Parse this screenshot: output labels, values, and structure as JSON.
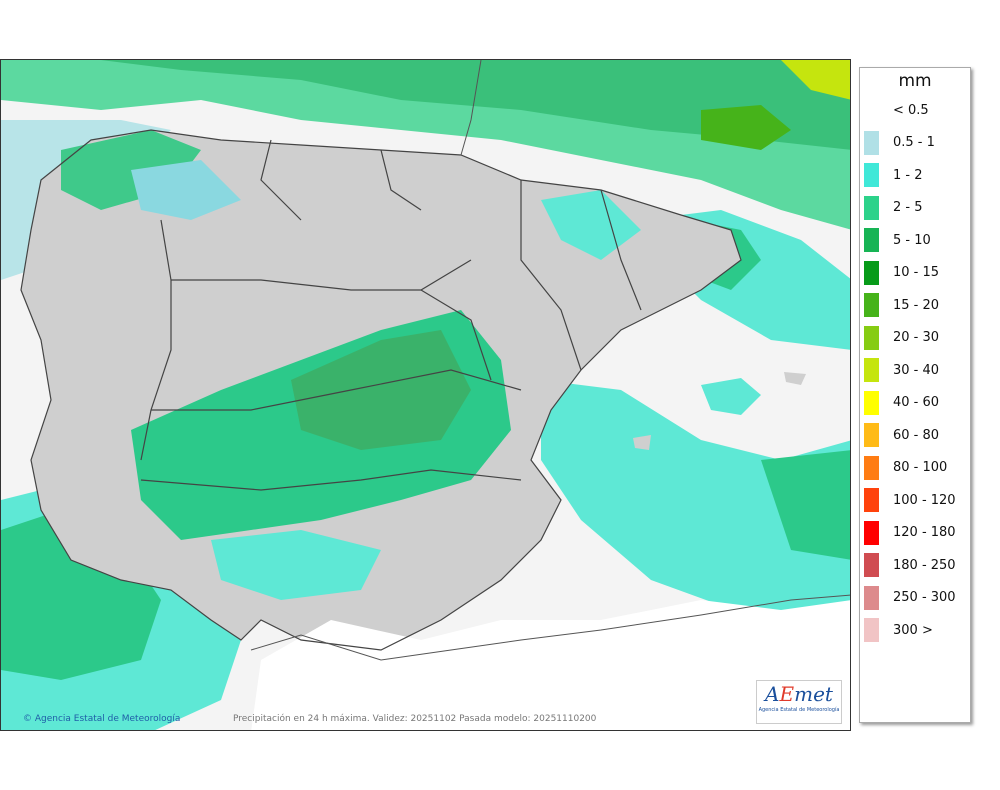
{
  "map": {
    "credit": "Agencia Estatal de Meteorología",
    "caption": "Precipitación en 24 h máxima. Validez: 20251102 Pasada modelo: 20251110200",
    "logo_text": "AEmet",
    "logo_sub": "Agencia Estatal de Meteorología"
  },
  "legend": {
    "unit": "mm",
    "items": [
      {
        "label": "< 0.5",
        "color": "#ffffff"
      },
      {
        "label": "0.5 - 1",
        "color": "#b0e0e6"
      },
      {
        "label": "1 - 2",
        "color": "#40e8d8"
      },
      {
        "label": "2 - 5",
        "color": "#2cd28a"
      },
      {
        "label": "5 - 10",
        "color": "#17b455"
      },
      {
        "label": "10 - 15",
        "color": "#079b19"
      },
      {
        "label": "15 - 20",
        "color": "#46b31a"
      },
      {
        "label": "20 - 30",
        "color": "#86cc13"
      },
      {
        "label": "30 - 40",
        "color": "#c5e50e"
      },
      {
        "label": "40 - 60",
        "color": "#ffff00"
      },
      {
        "label": "60 - 80",
        "color": "#ffbb17"
      },
      {
        "label": "80 - 100",
        "color": "#ff7c13"
      },
      {
        "label": "100 - 120",
        "color": "#ff420c"
      },
      {
        "label": "120 - 180",
        "color": "#ff0000"
      },
      {
        "label": "180 - 250",
        "color": "#d04c51"
      },
      {
        "label": "250 - 300",
        "color": "#dd8a8c"
      },
      {
        "label": "300 >",
        "color": "#f1c4c5"
      }
    ]
  }
}
